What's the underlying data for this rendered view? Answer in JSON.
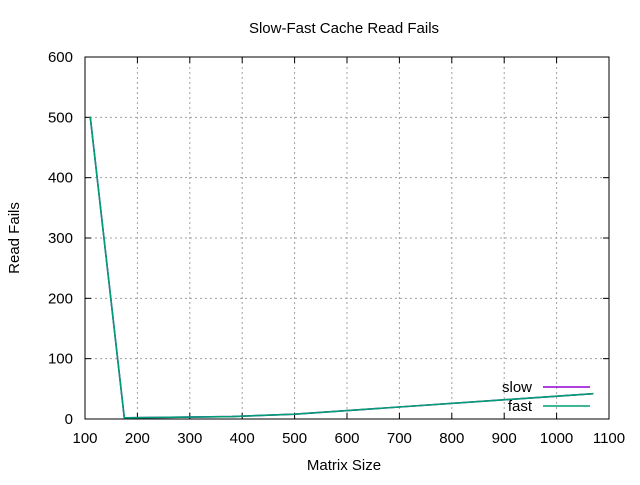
{
  "chart_data": {
    "type": "line",
    "title": "Slow-Fast Cache Read Fails",
    "xlabel": "Matrix Size",
    "ylabel": "Read Fails",
    "xlim": [
      100,
      1100
    ],
    "ylim": [
      0,
      600
    ],
    "xticks": [
      100,
      200,
      300,
      400,
      500,
      600,
      700,
      800,
      900,
      1000,
      1100
    ],
    "yticks": [
      0,
      100,
      200,
      300,
      400,
      500,
      600
    ],
    "grid": true,
    "legend_position": "bottom-right",
    "series": [
      {
        "name": "slow",
        "color": "#9400d3",
        "x": [
          110,
          175,
          380,
          500,
          1070
        ],
        "y": [
          501,
          2,
          4,
          8,
          42
        ]
      },
      {
        "name": "fast",
        "color": "#009e73",
        "x": [
          110,
          175,
          380,
          500,
          1070
        ],
        "y": [
          501,
          2,
          4,
          8,
          42
        ]
      }
    ]
  }
}
